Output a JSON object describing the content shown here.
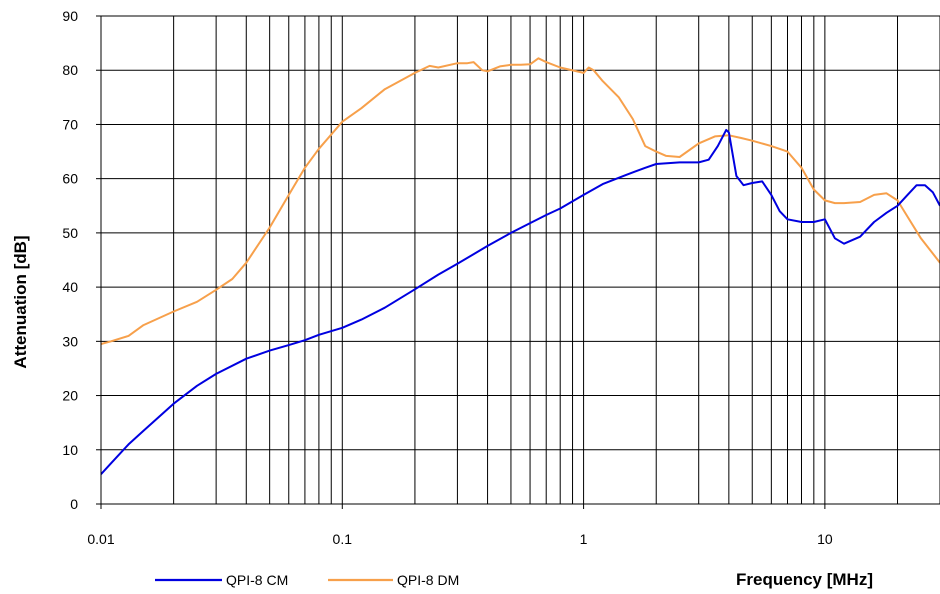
{
  "chart_data": {
    "type": "line",
    "title": "",
    "xlabel": "Frequency [MHz]",
    "ylabel": "Attenuation [dB]",
    "xscale": "log",
    "xlim": [
      0.01,
      30
    ],
    "ylim": [
      0,
      90
    ],
    "x_ticks": [
      {
        "value": 0.01,
        "label": "0.01"
      },
      {
        "value": 0.1,
        "label": "0.1"
      },
      {
        "value": 1,
        "label": "1"
      },
      {
        "value": 10,
        "label": "10"
      }
    ],
    "y_ticks": [
      {
        "value": 0,
        "label": "0"
      },
      {
        "value": 10,
        "label": "10"
      },
      {
        "value": 20,
        "label": "20"
      },
      {
        "value": 30,
        "label": "30"
      },
      {
        "value": 40,
        "label": "40"
      },
      {
        "value": 50,
        "label": "50"
      },
      {
        "value": 60,
        "label": "60"
      },
      {
        "value": 70,
        "label": "70"
      },
      {
        "value": 80,
        "label": "80"
      },
      {
        "value": 90,
        "label": "90"
      }
    ],
    "grid": true,
    "legend_position": "bottom-left",
    "series": [
      {
        "name": "QPI-8 CM",
        "color": "#0000e0",
        "x": [
          0.01,
          0.011,
          0.013,
          0.015,
          0.02,
          0.025,
          0.03,
          0.04,
          0.05,
          0.06,
          0.07,
          0.08,
          0.1,
          0.12,
          0.15,
          0.2,
          0.25,
          0.3,
          0.4,
          0.5,
          0.6,
          0.7,
          0.8,
          1.0,
          1.2,
          1.5,
          1.8,
          2.0,
          2.5,
          3.0,
          3.3,
          3.6,
          3.9,
          4.0,
          4.3,
          4.6,
          5.0,
          5.5,
          6.0,
          6.5,
          7.0,
          8.0,
          9.0,
          10.0,
          11.0,
          12.0,
          14.0,
          16.0,
          18.0,
          20.0,
          22.0,
          24.0,
          26.0,
          28.0,
          30.0
        ],
        "y": [
          5.5,
          7.5,
          11,
          13.5,
          18.5,
          21.8,
          24,
          26.8,
          28.3,
          29.3,
          30.2,
          31.2,
          32.5,
          34,
          36.2,
          39.6,
          42.3,
          44.3,
          47.6,
          50,
          51.8,
          53.3,
          54.5,
          57,
          59,
          60.7,
          62,
          62.7,
          63,
          63,
          63.5,
          66,
          69,
          68.5,
          60.5,
          58.8,
          59.2,
          59.5,
          57,
          54,
          52.5,
          52,
          52,
          52.5,
          49,
          48,
          49.3,
          52,
          53.7,
          55,
          57,
          58.8,
          58.8,
          57.5,
          55
        ]
      },
      {
        "name": "QPI-8 DM",
        "color": "#f7a04b",
        "x": [
          0.01,
          0.011,
          0.013,
          0.015,
          0.02,
          0.025,
          0.03,
          0.035,
          0.04,
          0.05,
          0.06,
          0.07,
          0.08,
          0.1,
          0.12,
          0.15,
          0.2,
          0.23,
          0.25,
          0.3,
          0.33,
          0.35,
          0.38,
          0.4,
          0.45,
          0.5,
          0.55,
          0.6,
          0.65,
          0.7,
          0.8,
          1.0,
          1.05,
          1.1,
          1.2,
          1.4,
          1.6,
          1.8,
          2.0,
          2.2,
          2.5,
          3.0,
          3.5,
          4.0,
          4.5,
          5.0,
          6.0,
          7.0,
          8.0,
          9.0,
          10.0,
          11.0,
          12.0,
          14.0,
          16.0,
          18.0,
          20.0,
          22.0,
          25.0,
          30.0
        ],
        "y": [
          29.5,
          30,
          31,
          33,
          35.5,
          37.3,
          39.5,
          41.5,
          44.5,
          51,
          57,
          62,
          65.5,
          70.5,
          73,
          76.5,
          79.5,
          80.8,
          80.5,
          81.3,
          81.3,
          81.5,
          80,
          79.8,
          80.7,
          81,
          81,
          81.1,
          82.2,
          81.5,
          80.5,
          79.5,
          80.5,
          80,
          78,
          75,
          71,
          66,
          65,
          64.2,
          64,
          66.5,
          67.8,
          68,
          67.5,
          67,
          66,
          65,
          62,
          58,
          56,
          55.5,
          55.5,
          55.7,
          57,
          57.3,
          56,
          53,
          49,
          44.5
        ]
      }
    ]
  }
}
